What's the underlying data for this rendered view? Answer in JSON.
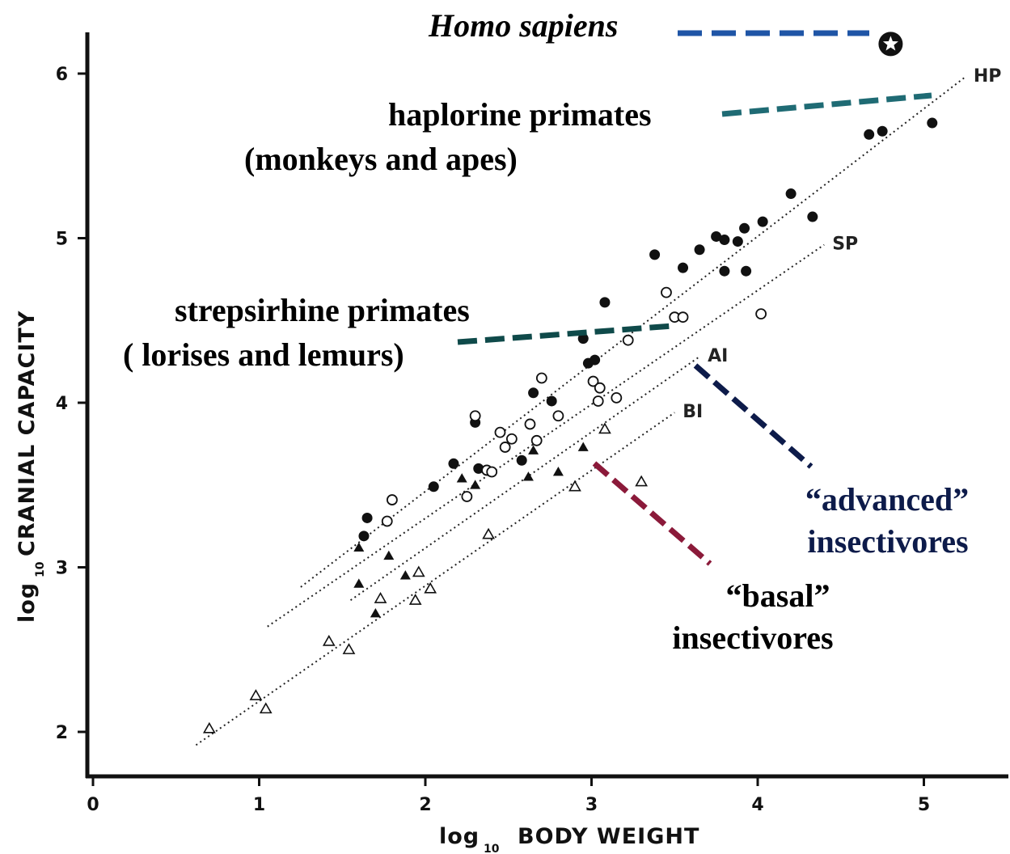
{
  "chart_data": {
    "type": "scatter",
    "title": "",
    "xlabel": {
      "prefix": "log",
      "sub": "10",
      "text": "BODY WEIGHT"
    },
    "ylabel": {
      "prefix": "log",
      "sub": "10",
      "text": "CRANIAL CAPACITY"
    },
    "xlim": [
      0,
      5.5
    ],
    "ylim": [
      1.75,
      6.3
    ],
    "x_ticks": [
      "0",
      "1",
      "2",
      "3",
      "4",
      "5"
    ],
    "y_ticks": [
      "2",
      "3",
      "4",
      "5",
      "6"
    ],
    "grid": false,
    "colors": {
      "axis": "#111111",
      "points": "#111111",
      "homo": "#1f55a6",
      "haplorine": "#1f6b74",
      "strepsirhine": "#0f4a4a",
      "advanced": "#0d1b4a",
      "basal": "#8b1a3a"
    },
    "regression_lines": [
      {
        "label": "HP",
        "x1": 1.25,
        "y1": 2.88,
        "x2": 5.25,
        "y2": 5.98
      },
      {
        "label": "SP",
        "x1": 1.05,
        "y1": 2.64,
        "x2": 4.4,
        "y2": 4.96
      },
      {
        "label": "AI",
        "x1": 1.55,
        "y1": 2.8,
        "x2": 3.65,
        "y2": 4.28
      },
      {
        "label": "BI",
        "x1": 0.62,
        "y1": 1.92,
        "x2": 3.5,
        "y2": 3.94
      }
    ],
    "series": [
      {
        "name": "haplorine primates",
        "marker": "filled-circle",
        "points": [
          [
            1.65,
            3.3
          ],
          [
            1.63,
            3.19
          ],
          [
            2.05,
            3.49
          ],
          [
            2.17,
            3.63
          ],
          [
            2.32,
            3.6
          ],
          [
            2.3,
            3.88
          ],
          [
            2.58,
            3.65
          ],
          [
            2.65,
            4.06
          ],
          [
            2.76,
            4.01
          ],
          [
            2.95,
            4.39
          ],
          [
            2.98,
            4.24
          ],
          [
            3.02,
            4.26
          ],
          [
            3.08,
            4.61
          ],
          [
            3.38,
            4.9
          ],
          [
            3.55,
            4.82
          ],
          [
            3.65,
            4.93
          ],
          [
            3.75,
            5.01
          ],
          [
            3.8,
            4.99
          ],
          [
            3.88,
            4.98
          ],
          [
            3.8,
            4.8
          ],
          [
            3.92,
            5.06
          ],
          [
            3.93,
            4.8
          ],
          [
            4.03,
            5.1
          ],
          [
            4.2,
            5.27
          ],
          [
            4.33,
            5.13
          ],
          [
            4.67,
            5.63
          ],
          [
            4.75,
            5.65
          ],
          [
            5.05,
            5.7
          ]
        ]
      },
      {
        "name": "strepsirhine primates",
        "marker": "open-circle",
        "points": [
          [
            1.8,
            3.41
          ],
          [
            1.77,
            3.28
          ],
          [
            2.25,
            3.43
          ],
          [
            2.3,
            3.92
          ],
          [
            2.37,
            3.59
          ],
          [
            2.4,
            3.58
          ],
          [
            2.45,
            3.82
          ],
          [
            2.48,
            3.73
          ],
          [
            2.52,
            3.78
          ],
          [
            2.63,
            3.87
          ],
          [
            2.67,
            3.77
          ],
          [
            2.7,
            4.15
          ],
          [
            2.8,
            3.92
          ],
          [
            3.01,
            4.13
          ],
          [
            3.04,
            4.01
          ],
          [
            3.05,
            4.09
          ],
          [
            3.15,
            4.03
          ],
          [
            3.22,
            4.38
          ],
          [
            3.45,
            4.67
          ],
          [
            3.5,
            4.52
          ],
          [
            3.55,
            4.52
          ],
          [
            4.02,
            4.54
          ]
        ]
      },
      {
        "name": "advanced insectivores",
        "marker": "filled-triangle",
        "points": [
          [
            1.6,
            3.12
          ],
          [
            1.6,
            2.9
          ],
          [
            1.78,
            3.07
          ],
          [
            1.7,
            2.72
          ],
          [
            1.88,
            2.95
          ],
          [
            2.22,
            3.54
          ],
          [
            2.3,
            3.5
          ],
          [
            2.62,
            3.55
          ],
          [
            2.65,
            3.71
          ],
          [
            2.8,
            3.58
          ],
          [
            2.95,
            3.73
          ]
        ]
      },
      {
        "name": "basal insectivores",
        "marker": "open-triangle",
        "points": [
          [
            0.7,
            2.02
          ],
          [
            0.98,
            2.22
          ],
          [
            1.04,
            2.14
          ],
          [
            1.42,
            2.55
          ],
          [
            1.54,
            2.5
          ],
          [
            1.73,
            2.81
          ],
          [
            1.94,
            2.8
          ],
          [
            1.96,
            2.97
          ],
          [
            2.03,
            2.87
          ],
          [
            2.38,
            3.2
          ],
          [
            2.9,
            3.49
          ],
          [
            3.08,
            3.84
          ],
          [
            3.3,
            3.52
          ]
        ]
      }
    ],
    "highlight": {
      "name": "Homo sapiens",
      "marker": "star-in-circle",
      "x": 4.8,
      "y": 6.18
    },
    "annotations": [
      {
        "id": "homo",
        "text": "Homo sapiens",
        "italic": true,
        "color": "#000000"
      },
      {
        "id": "haplorine",
        "line1": "haplorine primates",
        "line2": "(monkeys and apes)",
        "color": "#000000"
      },
      {
        "id": "strepsirhine",
        "line1": "strepsirhine primates",
        "line2": "( lorises and lemurs)",
        "color": "#000000"
      },
      {
        "id": "advanced",
        "line1": "“advanced”",
        "line2": "insectivores",
        "color": "#0d1b4a"
      },
      {
        "id": "basal",
        "line1": "“basal”",
        "line2": "insectivores",
        "color": "#000000"
      }
    ]
  }
}
